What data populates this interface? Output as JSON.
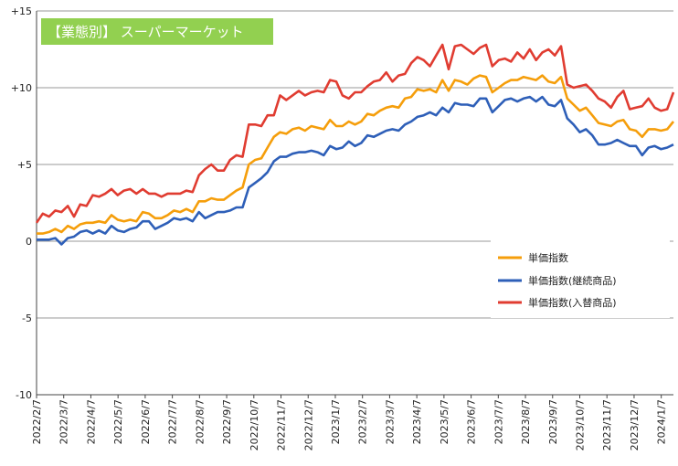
{
  "chart_data": {
    "type": "line",
    "title": "【業態別】 スーパーマーケット",
    "title_box_color": "#92d050",
    "xlabel": "",
    "ylabel": "",
    "ylim": [
      -10,
      15
    ],
    "yticks": [
      15,
      10,
      5,
      0,
      -5,
      -10
    ],
    "ytick_labels": [
      "+15",
      "+10",
      "+5",
      "0",
      "-5",
      "-10"
    ],
    "grid": "horizontal",
    "legend_position": "right",
    "x_tick_labels": [
      "2022/2/7",
      "2022/3/7",
      "2022/4/7",
      "2022/5/7",
      "2022/6/7",
      "2022/7/7",
      "2022/8/7",
      "2022/9/7",
      "2022/10/7",
      "2022/11/7",
      "2022/12/7",
      "2023/1/7",
      "2023/2/7",
      "2023/3/7",
      "2023/4/7",
      "2023/5/7",
      "2023/6/7",
      "2023/7/7",
      "2023/8/7",
      "2023/9/7",
      "2023/10/7",
      "2023/11/7",
      "2023/12/7",
      "2024/1/7"
    ],
    "weeks_per_tick": 4.35,
    "series": [
      {
        "name": "単価指数",
        "color": "#f59e0b",
        "values": [
          0.5,
          0.5,
          0.6,
          0.8,
          0.6,
          1.0,
          0.8,
          1.1,
          1.2,
          1.2,
          1.3,
          1.2,
          1.7,
          1.4,
          1.3,
          1.4,
          1.3,
          1.9,
          1.8,
          1.5,
          1.5,
          1.7,
          2.0,
          1.9,
          2.1,
          1.9,
          2.6,
          2.6,
          2.8,
          2.7,
          2.7,
          3.0,
          3.3,
          3.5,
          5.0,
          5.3,
          5.4,
          6.1,
          6.8,
          7.1,
          7.0,
          7.3,
          7.4,
          7.2,
          7.5,
          7.4,
          7.3,
          7.9,
          7.5,
          7.5,
          7.8,
          7.6,
          7.8,
          8.3,
          8.2,
          8.5,
          8.7,
          8.8,
          8.7,
          9.3,
          9.4,
          9.9,
          9.8,
          9.9,
          9.7,
          10.5,
          9.8,
          10.5,
          10.4,
          10.2,
          10.6,
          10.8,
          10.7,
          9.7,
          10.0,
          10.3,
          10.5,
          10.5,
          10.7,
          10.6,
          10.5,
          10.8,
          10.4,
          10.3,
          10.7,
          9.3,
          8.9,
          8.5,
          8.7,
          8.2,
          7.7,
          7.6,
          7.5,
          7.8,
          7.9,
          7.3,
          7.2,
          6.8,
          7.3,
          7.3,
          7.2,
          7.3,
          7.8
        ]
      },
      {
        "name": "単価指数(継続商品)",
        "color": "#2e5fb8",
        "values": [
          0.1,
          0.1,
          0.1,
          0.2,
          -0.2,
          0.2,
          0.3,
          0.6,
          0.7,
          0.5,
          0.7,
          0.5,
          1.0,
          0.7,
          0.6,
          0.8,
          0.9,
          1.3,
          1.3,
          0.8,
          1.0,
          1.2,
          1.5,
          1.4,
          1.5,
          1.3,
          1.9,
          1.5,
          1.7,
          1.9,
          1.9,
          2.0,
          2.2,
          2.2,
          3.5,
          3.8,
          4.1,
          4.5,
          5.2,
          5.5,
          5.5,
          5.7,
          5.8,
          5.8,
          5.9,
          5.8,
          5.6,
          6.2,
          6.0,
          6.1,
          6.5,
          6.2,
          6.4,
          6.9,
          6.8,
          7.0,
          7.2,
          7.3,
          7.2,
          7.6,
          7.8,
          8.1,
          8.2,
          8.4,
          8.2,
          8.7,
          8.4,
          9.0,
          8.9,
          8.9,
          8.8,
          9.3,
          9.3,
          8.4,
          8.8,
          9.2,
          9.3,
          9.1,
          9.3,
          9.4,
          9.1,
          9.4,
          8.9,
          8.8,
          9.2,
          8.0,
          7.6,
          7.1,
          7.3,
          6.9,
          6.3,
          6.3,
          6.4,
          6.6,
          6.4,
          6.2,
          6.2,
          5.6,
          6.1,
          6.2,
          6.0,
          6.1,
          6.3
        ]
      },
      {
        "name": "単価指数(入替商品)",
        "color": "#e03c31",
        "values": [
          1.2,
          1.8,
          1.6,
          2.0,
          1.9,
          2.3,
          1.6,
          2.4,
          2.3,
          3.0,
          2.9,
          3.1,
          3.4,
          3.0,
          3.3,
          3.4,
          3.1,
          3.4,
          3.1,
          3.1,
          2.9,
          3.1,
          3.1,
          3.1,
          3.3,
          3.2,
          4.3,
          4.7,
          5.0,
          4.6,
          4.6,
          5.3,
          5.6,
          5.5,
          7.6,
          7.6,
          7.5,
          8.2,
          8.2,
          9.5,
          9.2,
          9.5,
          9.8,
          9.5,
          9.7,
          9.8,
          9.7,
          10.5,
          10.4,
          9.5,
          9.3,
          9.7,
          9.7,
          10.1,
          10.4,
          10.5,
          11.0,
          10.4,
          10.8,
          10.9,
          11.6,
          12.0,
          11.8,
          11.4,
          12.1,
          12.8,
          11.2,
          12.7,
          12.8,
          12.5,
          12.2,
          12.6,
          12.8,
          11.4,
          11.8,
          11.9,
          11.7,
          12.3,
          11.9,
          12.5,
          11.8,
          12.3,
          12.5,
          12.1,
          12.7,
          10.2,
          10.0,
          10.1,
          10.2,
          9.8,
          9.3,
          9.1,
          8.7,
          9.4,
          9.8,
          8.6,
          8.7,
          8.8,
          9.3,
          8.7,
          8.5,
          8.6,
          9.7
        ]
      }
    ]
  }
}
